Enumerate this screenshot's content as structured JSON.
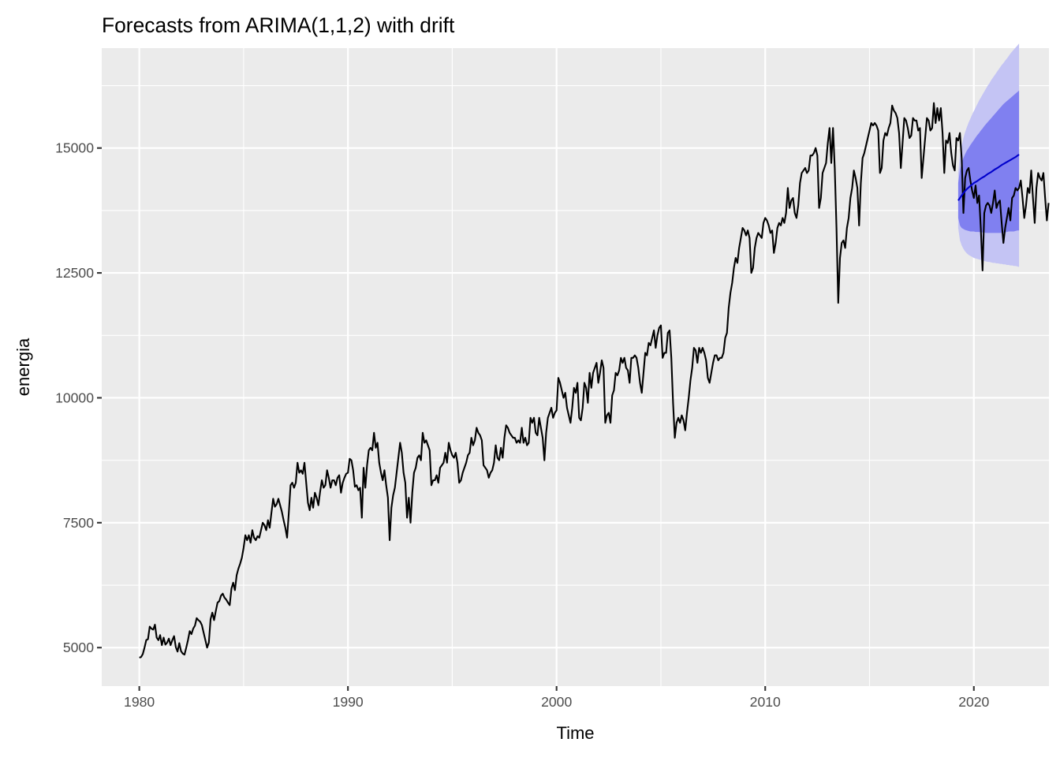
{
  "chart_data": {
    "type": "line",
    "title": "Forecasts from ARIMA(1,1,2) with drift",
    "xlabel": "Time",
    "ylabel": "energia",
    "xlim": [
      1978.2,
      2023.6
    ],
    "ylim": [
      4230,
      17000
    ],
    "x_ticks": [
      1980,
      1990,
      2000,
      2010,
      2020
    ],
    "y_ticks": [
      5000,
      7500,
      10000,
      12500,
      15000
    ],
    "x_tick_labels": [
      "1980",
      "1990",
      "2000",
      "2010",
      "2020"
    ],
    "y_tick_labels": [
      "5000",
      "7500",
      "10000",
      "12500",
      "15000"
    ],
    "grid": true,
    "panel_background": "#EBEBEB",
    "colors": {
      "series": "#000000",
      "forecast_mean": "#0000CC",
      "band_80": "#8080F0",
      "band_95": "#C4C4F4",
      "grid": "#FFFFFF"
    },
    "series": [
      {
        "kind": "observed",
        "start": 1980.0,
        "step": 0.0833333,
        "values": [
          4800,
          4810,
          4870,
          5000,
          5150,
          5170,
          5420,
          5380,
          5360,
          5460,
          5200,
          5150,
          5250,
          5050,
          5200,
          5060,
          5100,
          5180,
          5050,
          5150,
          5230,
          5010,
          4920,
          5090,
          4930,
          4880,
          4860,
          5000,
          5150,
          5330,
          5270,
          5380,
          5440,
          5590,
          5550,
          5520,
          5450,
          5300,
          5150,
          5000,
          5100,
          5570,
          5700,
          5550,
          5730,
          5900,
          5930,
          6040,
          6080,
          6000,
          5960,
          5900,
          5850,
          6180,
          6300,
          6150,
          6450,
          6580,
          6680,
          6800,
          7000,
          7250,
          7150,
          7250,
          7100,
          7350,
          7200,
          7150,
          7230,
          7200,
          7350,
          7500,
          7450,
          7350,
          7550,
          7400,
          7700,
          7980,
          7820,
          7870,
          7980,
          7850,
          7720,
          7550,
          7400,
          7200,
          7700,
          8250,
          8300,
          8200,
          8300,
          8700,
          8500,
          8550,
          8480,
          8700,
          8300,
          7900,
          7750,
          8000,
          7800,
          8100,
          8000,
          7850,
          8120,
          8350,
          8200,
          8250,
          8550,
          8400,
          8200,
          8350,
          8350,
          8250,
          8400,
          8450,
          8100,
          8300,
          8400,
          8480,
          8500,
          8780,
          8750,
          8550,
          8220,
          8250,
          8150,
          8200,
          7600,
          8600,
          8200,
          8650,
          8950,
          9000,
          8950,
          9300,
          9000,
          9100,
          8700,
          8500,
          8350,
          8550,
          8250,
          8000,
          7150,
          7800,
          8050,
          8200,
          8500,
          8800,
          9100,
          8900,
          8500,
          8300,
          7600,
          8000,
          7500,
          8100,
          8500,
          8600,
          8800,
          8850,
          8750,
          9300,
          9100,
          9150,
          9050,
          8950,
          8250,
          8350,
          8350,
          8450,
          8300,
          8600,
          8650,
          8700,
          8900,
          8700,
          9100,
          8950,
          8850,
          8800,
          8900,
          8700,
          8300,
          8350,
          8500,
          8600,
          8700,
          8850,
          8900,
          9200,
          9050,
          9150,
          9400,
          9300,
          9250,
          9150,
          8650,
          8600,
          8550,
          8400,
          8500,
          8550,
          8700,
          9050,
          8800,
          8750,
          9000,
          8800,
          9200,
          9450,
          9400,
          9300,
          9250,
          9200,
          9200,
          9100,
          9150,
          9100,
          9400,
          9100,
          9200,
          9050,
          9100,
          9600,
          9500,
          9600,
          9300,
          9250,
          9600,
          9400,
          9200,
          8750,
          9300,
          9600,
          9700,
          9800,
          9600,
          9700,
          9750,
          10400,
          10300,
          10150,
          10000,
          10100,
          9800,
          9650,
          9500,
          9800,
          10200,
          10100,
          10300,
          9600,
          9550,
          9800,
          10300,
          10200,
          9900,
          10500,
          10200,
          10500,
          10600,
          10700,
          10300,
          10500,
          10750,
          10600,
          9500,
          9650,
          9700,
          9500,
          10050,
          10150,
          10500,
          10450,
          10550,
          10800,
          10700,
          10800,
          10600,
          10550,
          10300,
          10800,
          10800,
          10850,
          10800,
          10600,
          10300,
          10100,
          10500,
          10900,
          10850,
          11100,
          11050,
          11200,
          11350,
          11000,
          11250,
          11400,
          11450,
          10800,
          10900,
          10900,
          11300,
          11350,
          10800,
          9900,
          9200,
          9500,
          9600,
          9500,
          9650,
          9550,
          9350,
          9700,
          10000,
          10350,
          10600,
          11000,
          10950,
          10700,
          11000,
          10900,
          11000,
          10900,
          10750,
          10400,
          10300,
          10500,
          10700,
          10850,
          10850,
          10750,
          10800,
          10800,
          10900,
          11200,
          11300,
          11800,
          12100,
          12300,
          12600,
          12800,
          12700,
          13000,
          13200,
          13400,
          13350,
          13250,
          13350,
          13200,
          12500,
          12600,
          13000,
          13200,
          13300,
          13250,
          13200,
          13500,
          13600,
          13550,
          13450,
          13300,
          13350,
          12900,
          13100,
          13400,
          13500,
          13450,
          13600,
          13500,
          13700,
          14200,
          13800,
          13950,
          14000,
          13700,
          13600,
          13850,
          14300,
          14500,
          14550,
          14600,
          14500,
          14550,
          14850,
          14850,
          14900,
          15000,
          14850,
          13800,
          14000,
          14500,
          14600,
          14700,
          15100,
          15400,
          14700,
          15400,
          14600,
          13400,
          11900,
          12800,
          13100,
          13150,
          13000,
          13400,
          13600,
          14000,
          14200,
          14550,
          14400,
          14200,
          13450,
          14300,
          14800,
          14900,
          15050,
          15200,
          15350,
          15500,
          15450,
          15500,
          15450,
          15350,
          14500,
          14600,
          15150,
          15300,
          15250,
          15400,
          15500,
          15850,
          15750,
          15700,
          15600,
          15300,
          14600,
          15100,
          15600,
          15550,
          15400,
          15200,
          15250,
          15600,
          15550,
          15550,
          15350,
          15400,
          14400,
          14800,
          15200,
          15600,
          15550,
          15350,
          15400,
          15900,
          15500,
          15800,
          15550,
          15800,
          15300,
          14500,
          15150,
          15100,
          15300,
          14900,
          14650,
          14550,
          15200,
          15150,
          15300,
          14800,
          13700,
          14400,
          14550,
          14600,
          14350,
          14150,
          14000,
          14250,
          13900,
          14050,
          13400,
          12550,
          13700,
          13850,
          13900,
          13850,
          13700,
          13900,
          14150,
          13800,
          13900,
          13950,
          13500,
          13100,
          13400,
          13600,
          13800,
          13550,
          14000,
          14050,
          14200,
          14150,
          14200,
          14350,
          14000,
          13600,
          13850,
          14200,
          14100,
          14550,
          14000,
          13500,
          14200,
          14500,
          14400,
          14350,
          14500,
          14000,
          13550,
          13900
        ]
      },
      {
        "kind": "forecast",
        "start": 2019.25,
        "step": 0.0833333,
        "mean": [
          13950,
          14000,
          14050,
          14100,
          14140,
          14180,
          14210,
          14240,
          14270,
          14300,
          14320,
          14340,
          14365,
          14390,
          14410,
          14430,
          14455,
          14480,
          14500,
          14520,
          14545,
          14570,
          14590,
          14610,
          14635,
          14660,
          14680,
          14700,
          14720,
          14740,
          14760,
          14780,
          14800,
          14820,
          14845,
          14870
        ],
        "lo80": [
          13600,
          13450,
          13400,
          13380,
          13360,
          13350,
          13340,
          13330,
          13330,
          13330,
          13320,
          13320,
          13320,
          13310,
          13310,
          13310,
          13300,
          13300,
          13300,
          13300,
          13300,
          13300,
          13300,
          13300,
          13300,
          13300,
          13300,
          13310,
          13320,
          13330,
          13330,
          13330,
          13330,
          13340,
          13350,
          13350
        ],
        "hi80": [
          14300,
          14550,
          14700,
          14800,
          14880,
          14950,
          15000,
          15060,
          15110,
          15160,
          15210,
          15260,
          15300,
          15350,
          15390,
          15440,
          15480,
          15520,
          15560,
          15600,
          15640,
          15680,
          15720,
          15760,
          15800,
          15840,
          15880,
          15910,
          15940,
          15970,
          16000,
          16030,
          16060,
          16090,
          16120,
          16150
        ],
        "lo95": [
          13400,
          13150,
          13050,
          12980,
          12930,
          12890,
          12860,
          12840,
          12820,
          12800,
          12790,
          12780,
          12770,
          12760,
          12750,
          12740,
          12730,
          12720,
          12720,
          12710,
          12700,
          12700,
          12690,
          12690,
          12680,
          12680,
          12670,
          12670,
          12660,
          12660,
          12650,
          12650,
          12640,
          12640,
          12630,
          12620
        ],
        "hi95": [
          14500,
          14850,
          15050,
          15200,
          15320,
          15420,
          15510,
          15590,
          15670,
          15740,
          15810,
          15880,
          15950,
          16010,
          16070,
          16130,
          16190,
          16250,
          16300,
          16360,
          16410,
          16460,
          16510,
          16560,
          16610,
          16660,
          16700,
          16750,
          16790,
          16840,
          16890,
          16930,
          16970,
          17010,
          17050,
          17090
        ]
      }
    ]
  }
}
